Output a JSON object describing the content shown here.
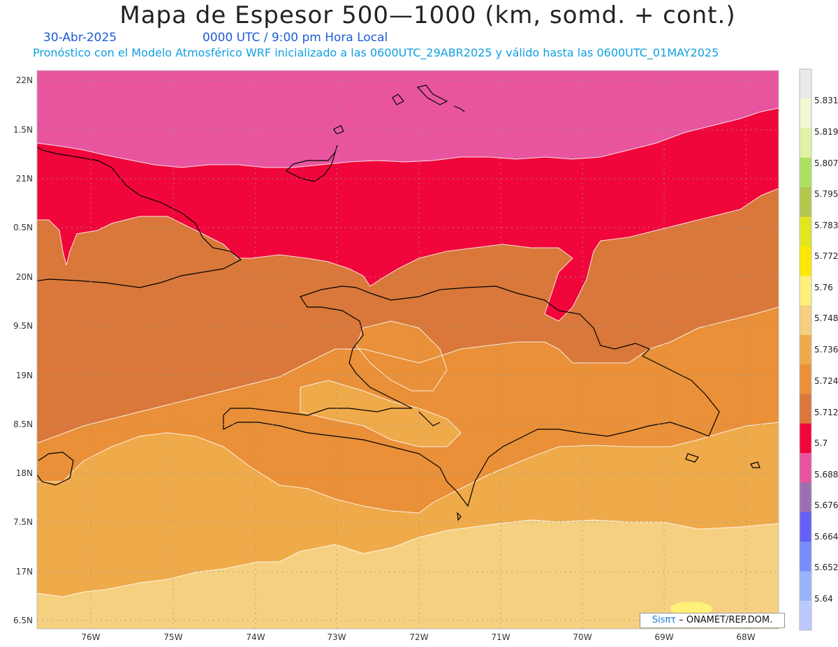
{
  "header": {
    "title": "Mapa de Espesor 500—1000 (km, somd. + cont.)",
    "date": "30-Abr-2025",
    "time": "0000 UTC / 9:00 pm Hora Local",
    "model_line": "Pronóstico con el Modelo Atmosférico WRF inicializado a las 0600UTC_29ABR2025 y válido hasta las  0600UTC_01MAY2025"
  },
  "axes": {
    "lat_labels": [
      "22N",
      "1.5N",
      "21N",
      "0.5N",
      "20N",
      "9.5N",
      "19N",
      "8.5N",
      "18N",
      "7.5N",
      "17N",
      "6.5N"
    ],
    "lon_labels": [
      "76W",
      "75W",
      "74W",
      "73W",
      "72W",
      "71W",
      "70W",
      "69W",
      "68W"
    ]
  },
  "colorbar": {
    "labels": [
      "5.831",
      "5.819",
      "5.807",
      "5.795",
      "5.783",
      "5.772",
      "5.76",
      "5.748",
      "5.736",
      "5.724",
      "5.712",
      "5.7",
      "5.688",
      "5.676",
      "5.664",
      "5.652",
      "5.64"
    ],
    "colors": [
      "#e9e9e9",
      "#f2f6d2",
      "#e2f2a4",
      "#ade062",
      "#b4c64e",
      "#e2e61e",
      "#fae800",
      "#fff078",
      "#f5d080",
      "#efaa4a",
      "#e99038",
      "#d9783a",
      "#f0063a",
      "#e8559e",
      "#9c70b0",
      "#6660f6",
      "#7a8bfb",
      "#9ab3fc",
      "#bcc9ff"
    ]
  },
  "credit": {
    "brand": "Sisπτ",
    "text": "– ONAMET/REP.DOM."
  }
}
